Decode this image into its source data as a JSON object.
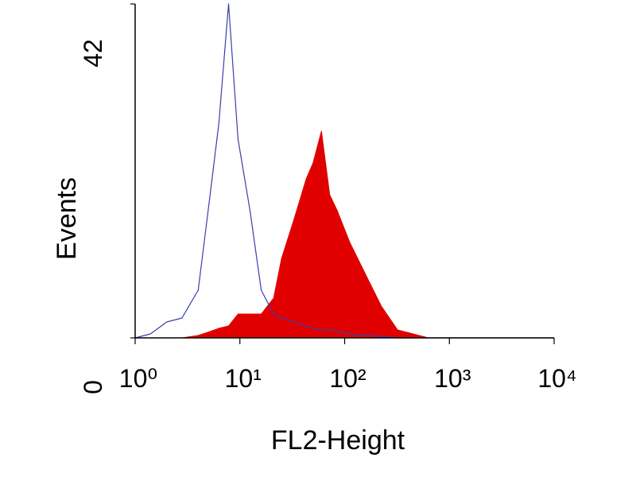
{
  "chart_data": {
    "type": "area",
    "ylabel": "Events",
    "xlabel": "FL2-Height",
    "xscale": "log",
    "xlim": [
      1,
      10000
    ],
    "xticks": [
      {
        "value": 1,
        "label": "10⁰"
      },
      {
        "value": 10,
        "label": "10¹"
      },
      {
        "value": 100,
        "label": "10²"
      },
      {
        "value": 1000,
        "label": "10³"
      },
      {
        "value": 10000,
        "label": "10⁴"
      }
    ],
    "ylim": [
      0,
      42
    ],
    "yticks": [
      0,
      42
    ],
    "x": [
      1,
      1.4,
      2,
      2.8,
      4,
      5.2,
      6.3,
      7.8,
      9.6,
      12.5,
      16,
      21,
      25,
      33,
      43,
      50,
      60,
      72,
      85,
      112,
      158,
      224,
      320,
      450,
      630,
      10000
    ],
    "series": [
      {
        "color": "#3b3fa8",
        "fill": false,
        "values": [
          0,
          0.5,
          2,
          2.5,
          6,
          18,
          27,
          42,
          25,
          16,
          6,
          3,
          2.5,
          2,
          1.5,
          1.2,
          1,
          1,
          0.8,
          0.5,
          0.3,
          0.2,
          0,
          0,
          0,
          0
        ]
      },
      {
        "color": "#e00000",
        "fill": true,
        "values": [
          0,
          0,
          0,
          0,
          0.3,
          0.8,
          1.2,
          1.5,
          3,
          3,
          3,
          5,
          10,
          15,
          20,
          22,
          26,
          18,
          16,
          12,
          8,
          4,
          1,
          0.5,
          0,
          0
        ]
      }
    ]
  }
}
